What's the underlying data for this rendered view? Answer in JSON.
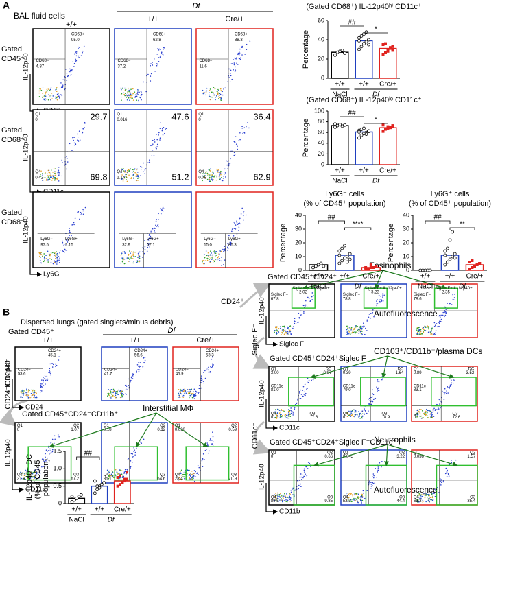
{
  "panel_a": {
    "label": "A",
    "title": "BAL fluid cells",
    "genotype_group": "Df",
    "columns": [
      "+/+",
      "+/+",
      "Cre/+"
    ],
    "rows": [
      {
        "gate": [
          "Gated",
          "CD45⁺"
        ],
        "y_axis": "IL-12p40",
        "x_axis": "CD68",
        "plots": [
          [
            "CD68+",
            "95.0",
            "CD68−",
            "4.87"
          ],
          [
            "CD68+",
            "62.8",
            "CD68−",
            "37.2"
          ],
          [
            "CD68+",
            "88.3",
            "CD68−",
            "11.6"
          ]
        ]
      },
      {
        "gate": [
          "Gated",
          "CD68⁺"
        ],
        "y_axis": "IL-12p40",
        "x_axis": "CD11c",
        "plots": [
          [
            "Q1",
            "0",
            "29.7",
            "Q4",
            "0.42",
            "69.8"
          ],
          [
            "Q1",
            "0.016",
            "47.6",
            "Q4",
            "1.14",
            "51.2"
          ],
          [
            "Q1",
            "0",
            "36.4",
            "Q4",
            "0.78",
            "62.9"
          ]
        ]
      },
      {
        "gate": [
          "Gated",
          "CD68⁻"
        ],
        "y_axis": "IL-12p40",
        "x_axis": "Ly6G",
        "plots": [
          [
            "Ly6G−",
            "97.5",
            "Ly6G+",
            "2.15"
          ],
          [
            "Ly6G−",
            "32.9",
            "Ly6G+",
            "67.1"
          ],
          [
            "Ly6G−",
            "15.0",
            "Ly6G+",
            "85.3"
          ]
        ]
      }
    ]
  },
  "panel_b": {
    "label": "B",
    "title": "Dispersed lungs (gated singlets/minus debris)",
    "genotype_group": "Df",
    "columns": [
      "+/+",
      "+/+",
      "Cre/+"
    ],
    "rows": [
      {
        "gate": "Gated CD45⁺",
        "y_axis": "IL-12p40",
        "x_axis": "CD24",
        "plots": [
          [
            "CD24+",
            "45.1",
            "CD24−",
            "53.6"
          ],
          [
            "CD24+",
            "56.6",
            "CD24−",
            "41.7"
          ],
          [
            "CD24+",
            "53.3",
            "CD24−",
            "45.9"
          ]
        ]
      },
      {
        "side": "CD24⁻CD11b⁺",
        "gate": "Gated CD45⁺CD24⁻CD11b⁺",
        "y_axis": "IL-12p40",
        "x_axis": "CD11c",
        "annotations": [
          "Interstitial MΦ"
        ],
        "plots": [
          [
            "Q1",
            "0",
            "Q2",
            "1.07",
            "Q4",
            "31.8",
            "Q3",
            "67.2"
          ],
          [
            "Q1",
            "0.18",
            "Q2",
            "0.12",
            "Q4",
            "35.1",
            "Q3",
            "64.6"
          ],
          [
            "Q1",
            "0.098",
            "Q2",
            "0.59",
            "Q4",
            "28.4",
            "Q3",
            "70.9"
          ]
        ]
      },
      {
        "side": "CD24⁺",
        "gate": "Gated CD45⁺CD24⁺",
        "y_axis": "IL-12p40",
        "x_axis": "Siglec F",
        "annotations": [
          "Eosinophils",
          "Autofluorescence"
        ],
        "plots": [
          [
            "Siglec F+ IL-12p40+",
            "2.02",
            "Siglec F−",
            "67.8"
          ],
          [
            "Siglec F+ IL-12p40+",
            "3.23",
            "Siglec F−",
            "78.8"
          ],
          [
            "Siglec F+ IL-12p40+",
            "2.35",
            "Siglec F−",
            "78.6"
          ]
        ]
      },
      {
        "side": "Siglec F⁻",
        "gate": "Gated CD45⁺CD24⁺Siglec F⁻",
        "y_axis": "IL-12p40",
        "x_axis": "CD11c",
        "annotations": [
          "CD103⁺/CD11b⁺/plasma DCs"
        ],
        "plots": [
          [
            "Q1",
            "3.00",
            "DC",
            "0.97",
            "CD11c−",
            "81.0",
            "Q4",
            "0",
            "Q3",
            "17.6"
          ],
          [
            "Q1",
            "0.39",
            "DC",
            "1.64",
            "CD11c−",
            "79.0",
            "Q4",
            "0",
            "Q3",
            "18.9"
          ],
          [
            "Q1",
            "0.89",
            "DC",
            "3.52",
            "CD11c−",
            "83.1",
            "Q4",
            "0",
            "Q3",
            "12.6"
          ]
        ]
      },
      {
        "side": "CD11c⁻",
        "gate": "Gated CD45⁺CD24⁺Siglec F⁻CD11c⁻",
        "y_axis": "IL-12p40",
        "x_axis": "CD11b",
        "annotations": [
          "Neutrophils",
          "Autofluorescence"
        ],
        "plots": [
          [
            "Q1",
            "0",
            "Q2",
            "0.66",
            "Q4",
            "89.5",
            "Q3",
            "9.85"
          ],
          [
            "Q1",
            "0.045",
            "Q2",
            "3.22",
            "Q4",
            "52.3",
            "Q3",
            "44.4"
          ],
          [
            "Q1",
            "0.036",
            "Q2",
            "1.57",
            "Q4",
            "63.3",
            "Q3",
            "35.4"
          ]
        ]
      }
    ]
  },
  "chart_data": [
    {
      "type": "bar",
      "title": [
        "(Gated CD68⁺) IL-12p40ʰⁱ CD11c⁺"
      ],
      "y_label": [
        "Percentage"
      ],
      "categories": [
        "+/+",
        "+/+",
        "Cre/+"
      ],
      "groups": [
        "NaCl",
        "Df"
      ],
      "colors": [
        "#000000",
        "#1f3fbf",
        "#e0231f"
      ],
      "values": [
        27,
        39,
        31
      ],
      "points": [
        [
          24,
          27,
          28,
          29,
          26
        ],
        [
          30,
          33,
          36,
          38,
          40,
          42,
          44,
          46,
          48,
          35,
          39
        ],
        [
          25,
          27,
          30,
          31,
          33,
          35,
          36,
          28,
          32,
          29
        ]
      ],
      "ylim": [
        0,
        60
      ],
      "yticks": [
        0,
        20,
        40,
        60
      ],
      "significance": [
        "##",
        "*"
      ]
    },
    {
      "type": "bar",
      "title": [
        "(Gated CD68⁺) IL-12p40ˡᵒ CD11c⁺"
      ],
      "y_label": [
        "Percentage"
      ],
      "categories": [
        "+/+",
        "+/+",
        "Cre/+"
      ],
      "groups": [
        "NaCl",
        "Df"
      ],
      "colors": [
        "#000000",
        "#1f3fbf",
        "#e0231f"
      ],
      "values": [
        73,
        61,
        69
      ],
      "points": [
        [
          70,
          73,
          75,
          72,
          74,
          76
        ],
        [
          50,
          55,
          58,
          60,
          62,
          64,
          66,
          68,
          57,
          63,
          61
        ],
        [
          62,
          66,
          68,
          70,
          72,
          74,
          67,
          71,
          69,
          73
        ]
      ],
      "ylim": [
        0,
        100
      ],
      "yticks": [
        0,
        20,
        40,
        60,
        80,
        100
      ],
      "significance": [
        "##",
        "*"
      ]
    },
    {
      "type": "bar",
      "title": [
        "Ly6G⁻ cells",
        "(% of CD45⁺ population)"
      ],
      "y_label": [
        "Percentage"
      ],
      "categories": [
        "+/+",
        "+/+",
        "Cre/+"
      ],
      "groups": [
        "NaCl",
        "Df"
      ],
      "colors": [
        "#000000",
        "#1f3fbf",
        "#e0231f"
      ],
      "values": [
        4,
        11,
        2
      ],
      "points": [
        [
          2,
          3,
          4,
          5,
          3
        ],
        [
          5,
          7,
          9,
          10,
          12,
          14,
          16,
          18,
          6,
          8,
          11
        ],
        [
          1,
          1,
          2,
          2,
          3,
          2,
          1,
          4,
          2,
          3
        ]
      ],
      "ylim": [
        0,
        40
      ],
      "yticks": [
        0,
        10,
        20,
        30,
        40
      ],
      "significance": [
        "##",
        "****"
      ]
    },
    {
      "type": "bar",
      "title": [
        "Ly6G⁺ cells",
        "(% of CD45⁺ population)"
      ],
      "y_label": [
        "Percentage"
      ],
      "categories": [
        "+/+",
        "+/+",
        "Cre/+"
      ],
      "groups": [
        "NaCl",
        "Df"
      ],
      "colors": [
        "#000000",
        "#1f3fbf",
        "#e0231f"
      ],
      "values": [
        0,
        11,
        4
      ],
      "points": [
        [
          0,
          0,
          0,
          0,
          0
        ],
        [
          4,
          6,
          8,
          10,
          12,
          14,
          16,
          22,
          28,
          9,
          11
        ],
        [
          1,
          2,
          3,
          4,
          5,
          6,
          7,
          3,
          4,
          5
        ]
      ],
      "ylim": [
        0,
        40
      ],
      "yticks": [
        0,
        10,
        20,
        30,
        40
      ],
      "significance": [
        "##",
        "**"
      ]
    },
    {
      "type": "bar",
      "y_label": [
        "IL-12p40⁺ DC",
        "(% of CD45⁺",
        "population)"
      ],
      "categories": [
        "+/+",
        "+/+",
        "Cre/+"
      ],
      "groups": [
        "NaCl",
        "Df"
      ],
      "colors": [
        "#000000",
        "#1f3fbf",
        "#e0231f"
      ],
      "values": [
        0.15,
        0.5,
        0.65
      ],
      "points": [
        [
          0.05,
          0.1,
          0.15,
          0.2,
          0.25,
          0.2
        ],
        [
          0.3,
          0.4,
          0.5,
          0.55,
          0.6,
          0.65,
          0.5,
          0.45
        ],
        [
          0.5,
          0.55,
          0.6,
          0.65,
          0.7,
          0.75,
          0.8,
          0.6,
          0.7,
          0.9
        ]
      ],
      "ylim": [
        0,
        1.5
      ],
      "yticks": [
        0,
        0.5,
        {
          "value": 1,
          "label": "1.0"
        },
        1.5
      ],
      "significance": [
        "##"
      ]
    }
  ]
}
